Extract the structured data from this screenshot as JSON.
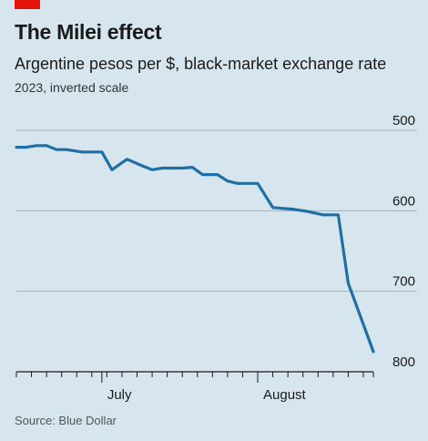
{
  "header": {
    "title": "The Milei effect",
    "subtitle": "Argentine pesos per $, black-market exchange rate",
    "note": "2023, inverted scale"
  },
  "source": "Source: Blue Dollar",
  "colors": {
    "accent": "#e3120b",
    "line": "#1f6fa3",
    "background": "#d7e6ee"
  },
  "chart_data": {
    "type": "line",
    "title": "The Milei effect",
    "subtitle": "Argentine pesos per $, black-market exchange rate",
    "note": "2023, inverted scale",
    "xlabel": "",
    "ylabel": "",
    "yscale": "linear-inverted",
    "ylim": [
      500,
      800
    ],
    "yticks": [
      500,
      600,
      700,
      800
    ],
    "xlim": [
      "2023-06-14",
      "2023-08-24"
    ],
    "x_month_ticks": [
      {
        "date": "2023-07-01",
        "label": "July"
      },
      {
        "date": "2023-08-01",
        "label": "August"
      }
    ],
    "grid": true,
    "legend": "none",
    "series": [
      {
        "values": [
          [
            "2023-06-14",
            521
          ],
          [
            "2023-06-16",
            521
          ],
          [
            "2023-06-18",
            519
          ],
          [
            "2023-06-20",
            519
          ],
          [
            "2023-06-22",
            524
          ],
          [
            "2023-06-24",
            524
          ],
          [
            "2023-06-27",
            527
          ],
          [
            "2023-06-30",
            527
          ],
          [
            "2023-07-01",
            527
          ],
          [
            "2023-07-03",
            549
          ],
          [
            "2023-07-06",
            536
          ],
          [
            "2023-07-09",
            544
          ],
          [
            "2023-07-11",
            549
          ],
          [
            "2023-07-13",
            547
          ],
          [
            "2023-07-17",
            547
          ],
          [
            "2023-07-19",
            546
          ],
          [
            "2023-07-21",
            555
          ],
          [
            "2023-07-24",
            555
          ],
          [
            "2023-07-26",
            563
          ],
          [
            "2023-07-28",
            566
          ],
          [
            "2023-08-01",
            566
          ],
          [
            "2023-08-04",
            596
          ],
          [
            "2023-08-08",
            598
          ],
          [
            "2023-08-11",
            601
          ],
          [
            "2023-08-14",
            605
          ],
          [
            "2023-08-17",
            605
          ],
          [
            "2023-08-19",
            690
          ],
          [
            "2023-08-24",
            775
          ]
        ]
      }
    ]
  }
}
